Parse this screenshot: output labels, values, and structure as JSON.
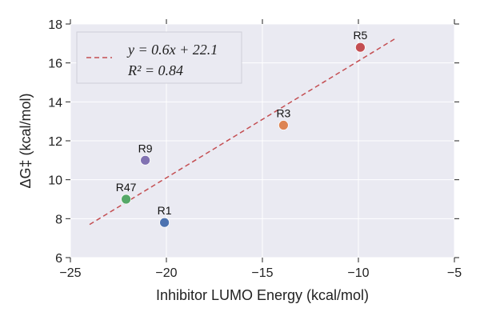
{
  "chart_data": {
    "type": "scatter",
    "title": "",
    "xlabel": "Inhibitor LUMO Energy (kcal/mol)",
    "ylabel": "ΔG‡ (kcal/mol)",
    "xlim": [
      -25,
      -5
    ],
    "ylim": [
      6,
      18
    ],
    "xticks": [
      -25,
      -20,
      -15,
      -10,
      -5
    ],
    "xtick_labels": [
      "−25",
      "−20",
      "−15",
      "−10",
      "−5"
    ],
    "yticks": [
      6,
      8,
      10,
      12,
      14,
      16,
      18
    ],
    "ytick_labels": [
      "6",
      "8",
      "10",
      "12",
      "14",
      "16",
      "18"
    ],
    "grid": true,
    "legend_position": "top-left",
    "points": [
      {
        "label": "R1",
        "x": -20.1,
        "y": 7.8,
        "color": "#4c72b0"
      },
      {
        "label": "R47",
        "x": -22.1,
        "y": 9.0,
        "color": "#55a868"
      },
      {
        "label": "R9",
        "x": -21.1,
        "y": 11.0,
        "color": "#8172b2"
      },
      {
        "label": "R3",
        "x": -13.9,
        "y": 12.8,
        "color": "#dd8452"
      },
      {
        "label": "R5",
        "x": -9.9,
        "y": 16.8,
        "color": "#c44e52"
      }
    ],
    "fit": {
      "slope": 0.6,
      "intercept": 22.1,
      "x_range": [
        -24,
        -8
      ],
      "color": "#c44e52",
      "equation": "y = 0.6x + 22.1",
      "r2_text": "R² = 0.84"
    }
  }
}
